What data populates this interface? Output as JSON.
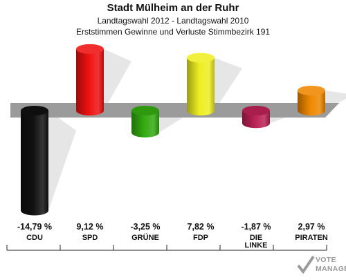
{
  "title": "Stadt Mülheim an der Ruhr",
  "subtitle1": "Landtagswahl 2012 - Landtagswahl 2010",
  "subtitle2": "Erststimmen Gewinne und Verluste Stimmbezirk 191",
  "watermark": {
    "line1": "VOTE",
    "line2": "MANAGER"
  },
  "chart_data": {
    "type": "bar",
    "title": "Stadt Mülheim an der Ruhr",
    "categories": [
      "CDU",
      "SPD",
      "GRÜNE",
      "FDP",
      "DIE LINKE",
      "PIRATEN"
    ],
    "values": [
      -14.79,
      9.12,
      -3.25,
      7.82,
      -1.87,
      2.97
    ],
    "value_labels": [
      "-14,79 %",
      "9,12 %",
      "-3,25 %",
      "7,82 %",
      "-1,87 %",
      "2,97 %"
    ],
    "colors": [
      "#111111",
      "#ee1111",
      "#33aa11",
      "#eeee22",
      "#bb2255",
      "#ee8800"
    ],
    "unit": "%",
    "grid": false,
    "legend": "none"
  }
}
